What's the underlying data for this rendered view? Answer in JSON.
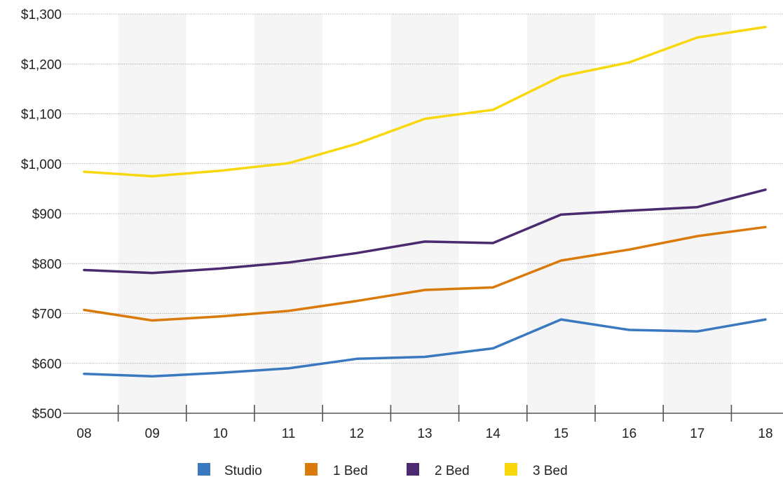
{
  "chart_data": {
    "type": "line",
    "title": "",
    "xlabel": "",
    "ylabel": "",
    "categories": [
      "08",
      "09",
      "10",
      "11",
      "12",
      "13",
      "14",
      "15",
      "16",
      "17",
      "18"
    ],
    "y_ticks": [
      "$500",
      "$600",
      "$700",
      "$800",
      "$900",
      "$1,000",
      "$1,100",
      "$1,200",
      "$1,300"
    ],
    "ylim": [
      500,
      1300
    ],
    "grid": true,
    "legend_position": "bottom-center",
    "series": [
      {
        "name": "Studio",
        "color": "#3a78c0",
        "values": [
          579,
          574,
          581,
          590,
          609,
          613,
          630,
          688,
          667,
          664,
          688
        ]
      },
      {
        "name": "1 Bed",
        "color": "#d97a0b",
        "values": [
          707,
          686,
          694,
          705,
          725,
          747,
          752,
          806,
          828,
          855,
          873
        ]
      },
      {
        "name": "2 Bed",
        "color": "#4b2a6f",
        "values": [
          787,
          781,
          790,
          802,
          821,
          844,
          841,
          898,
          906,
          913,
          948
        ]
      },
      {
        "name": "3 Bed",
        "color": "#f8d80c",
        "values": [
          984,
          975,
          986,
          1001,
          1040,
          1090,
          1108,
          1175,
          1203,
          1253,
          1274
        ]
      }
    ]
  }
}
